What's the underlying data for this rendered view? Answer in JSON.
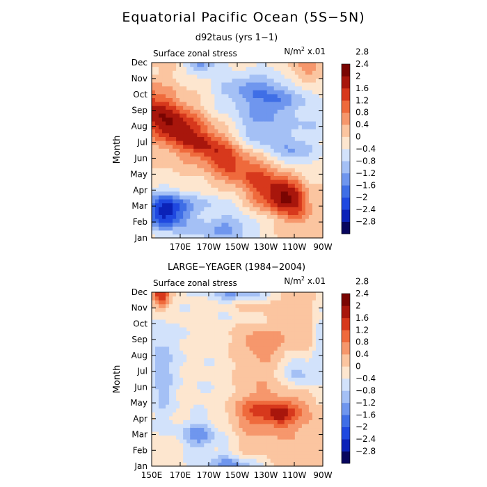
{
  "figure": {
    "title": "Equatorial Pacific Ocean (5S−5N)"
  },
  "palette": [
    "#08065e",
    "#0b22b8",
    "#1f48e0",
    "#3f6ee6",
    "#6f96ee",
    "#a4c0f5",
    "#d2e2fb",
    "#fde6cf",
    "#fbc5a0",
    "#f6976c",
    "#ef6a3c",
    "#d7381c",
    "#a8160c",
    "#7a0502"
  ],
  "chart_data": [
    {
      "type": "heatmap",
      "id": "top",
      "subtitle": "d92taus (yrs 1−1)",
      "left_label": "Surface zonal stress",
      "unit_prefix": "N/m",
      "unit_sup": "2",
      "unit_suffix": " x.01",
      "ylabel": "Month",
      "xrange": [
        150,
        270
      ],
      "yrange": [
        1,
        12
      ],
      "xticks": [
        {
          "value": 170,
          "label": "170E"
        },
        {
          "value": 190,
          "label": "170W"
        },
        {
          "value": 210,
          "label": "150W"
        },
        {
          "value": 230,
          "label": "130W"
        },
        {
          "value": 250,
          "label": "110W"
        },
        {
          "value": 270,
          "label": "90W"
        }
      ],
      "yticks": [
        "Jan",
        "Feb",
        "Mar",
        "Apr",
        "May",
        "Jun",
        "Jul",
        "Aug",
        "Sep",
        "Oct",
        "Nov",
        "Dec"
      ],
      "levels": [
        -2.8,
        -2.4,
        -2.0,
        -1.6,
        -1.2,
        -0.8,
        -0.4,
        0,
        0.4,
        0.8,
        1.2,
        1.6,
        2.0,
        2.4,
        2.8
      ],
      "level_labels": [
        "−2.8",
        "−2.4",
        "−2",
        "−1.6",
        "−1.2",
        "−0.8",
        "−0.4",
        "0",
        "0.4",
        "0.8",
        "1.2",
        "1.6",
        "2",
        "2.4",
        "2.8"
      ],
      "features": [
        {
          "type": "band",
          "x1": 150,
          "y1": 9.2,
          "x2": 250,
          "y2": 3.4,
          "amp": 1.3,
          "w": 1.5
        },
        {
          "type": "band",
          "x1": 150,
          "y1": 8.5,
          "x2": 200,
          "y2": 6.0,
          "amp": 0.4,
          "w": 1.0
        },
        {
          "type": "blob",
          "x": 240,
          "y": 3.5,
          "sx": 18,
          "sy": 0.9,
          "amp": 0.9
        },
        {
          "type": "blob",
          "x": 165,
          "y": 8.0,
          "sx": 14,
          "sy": 1.8,
          "amp": 0.5
        },
        {
          "type": "blob",
          "x": 160,
          "y": 2.7,
          "sx": 16,
          "sy": 1.2,
          "amp": -2.6
        },
        {
          "type": "blob",
          "x": 200,
          "y": 1.6,
          "sx": 25,
          "sy": 1.0,
          "amp": -1.3
        },
        {
          "type": "blob",
          "x": 190,
          "y": 3.3,
          "sx": 22,
          "sy": 0.6,
          "amp": -0.7
        },
        {
          "type": "blob",
          "x": 230,
          "y": 7.8,
          "sx": 25,
          "sy": 1.8,
          "amp": -1.2
        },
        {
          "type": "blob",
          "x": 250,
          "y": 6.3,
          "sx": 12,
          "sy": 0.8,
          "amp": -0.8
        },
        {
          "type": "blob",
          "x": 222,
          "y": 10.3,
          "sx": 28,
          "sy": 1.3,
          "amp": -1.3
        },
        {
          "type": "blob",
          "x": 240,
          "y": 9.6,
          "sx": 12,
          "sy": 0.7,
          "amp": -0.6
        },
        {
          "type": "blob",
          "x": 185,
          "y": 12.0,
          "sx": 12,
          "sy": 0.7,
          "amp": -1.3
        },
        {
          "type": "blob",
          "x": 258,
          "y": 11.5,
          "sx": 10,
          "sy": 0.9,
          "amp": 0.8
        },
        {
          "type": "blob",
          "x": 262,
          "y": 8.5,
          "sx": 10,
          "sy": 2.5,
          "amp": -0.6
        }
      ]
    },
    {
      "type": "heatmap",
      "id": "bottom",
      "subtitle": "LARGE−YEAGER (1984−2004)",
      "left_label": "Surface zonal stress",
      "unit_prefix": "N/m",
      "unit_sup": "2",
      "unit_suffix": " x.01",
      "ylabel": "Month",
      "xrange": [
        150,
        270
      ],
      "yrange": [
        1,
        12
      ],
      "xticks": [
        {
          "value": 150,
          "label": "150E"
        },
        {
          "value": 170,
          "label": "170E"
        },
        {
          "value": 190,
          "label": "170W"
        },
        {
          "value": 210,
          "label": "150W"
        },
        {
          "value": 230,
          "label": "130W"
        },
        {
          "value": 250,
          "label": "110W"
        },
        {
          "value": 270,
          "label": "90W"
        }
      ],
      "yticks": [
        "Jan",
        "Feb",
        "Mar",
        "Apr",
        "May",
        "Jun",
        "Jul",
        "Aug",
        "Sep",
        "Oct",
        "Nov",
        "Dec"
      ],
      "levels": [
        -2.8,
        -2.4,
        -2.0,
        -1.6,
        -1.2,
        -0.8,
        -0.4,
        0,
        0.4,
        0.8,
        1.2,
        1.6,
        2.0,
        2.4,
        2.8
      ],
      "level_labels": [
        "−2.8",
        "−2.4",
        "−2",
        "−1.6",
        "−1.2",
        "−0.8",
        "−0.4",
        "0",
        "0.4",
        "0.8",
        "1.2",
        "1.6",
        "2",
        "2.4",
        "2.8"
      ],
      "features": [
        {
          "type": "const",
          "amp": 0.25
        },
        {
          "type": "blob",
          "x": 232,
          "y": 4.4,
          "sx": 26,
          "sy": 1.0,
          "amp": 1.1
        },
        {
          "type": "blob",
          "x": 240,
          "y": 4.3,
          "sx": 8,
          "sy": 0.6,
          "amp": 0.7
        },
        {
          "type": "blob",
          "x": 156,
          "y": 11.8,
          "sx": 7,
          "sy": 0.8,
          "amp": 1.9
        },
        {
          "type": "blob",
          "x": 228,
          "y": 8.8,
          "sx": 16,
          "sy": 0.7,
          "amp": 0.5
        },
        {
          "type": "band",
          "x1": 160,
          "y1": 8.5,
          "x2": 200,
          "y2": 1.5,
          "amp": -0.6,
          "w": 14
        },
        {
          "type": "blob",
          "x": 157,
          "y": 7.0,
          "sx": 8,
          "sy": 2.8,
          "amp": -0.8
        },
        {
          "type": "blob",
          "x": 183,
          "y": 3.0,
          "sx": 12,
          "sy": 0.8,
          "amp": -1.1
        },
        {
          "type": "blob",
          "x": 210,
          "y": 1.1,
          "sx": 22,
          "sy": 0.6,
          "amp": -1.2
        },
        {
          "type": "blob",
          "x": 212,
          "y": 12.0,
          "sx": 25,
          "sy": 0.6,
          "amp": -1.3
        },
        {
          "type": "blob",
          "x": 215,
          "y": 10.4,
          "sx": 18,
          "sy": 0.6,
          "amp": -0.4
        },
        {
          "type": "blob",
          "x": 253,
          "y": 7.0,
          "sx": 12,
          "sy": 1.1,
          "amp": -1.2
        },
        {
          "type": "blob",
          "x": 268,
          "y": 9.0,
          "sx": 6,
          "sy": 4.0,
          "amp": -0.8
        }
      ]
    }
  ]
}
